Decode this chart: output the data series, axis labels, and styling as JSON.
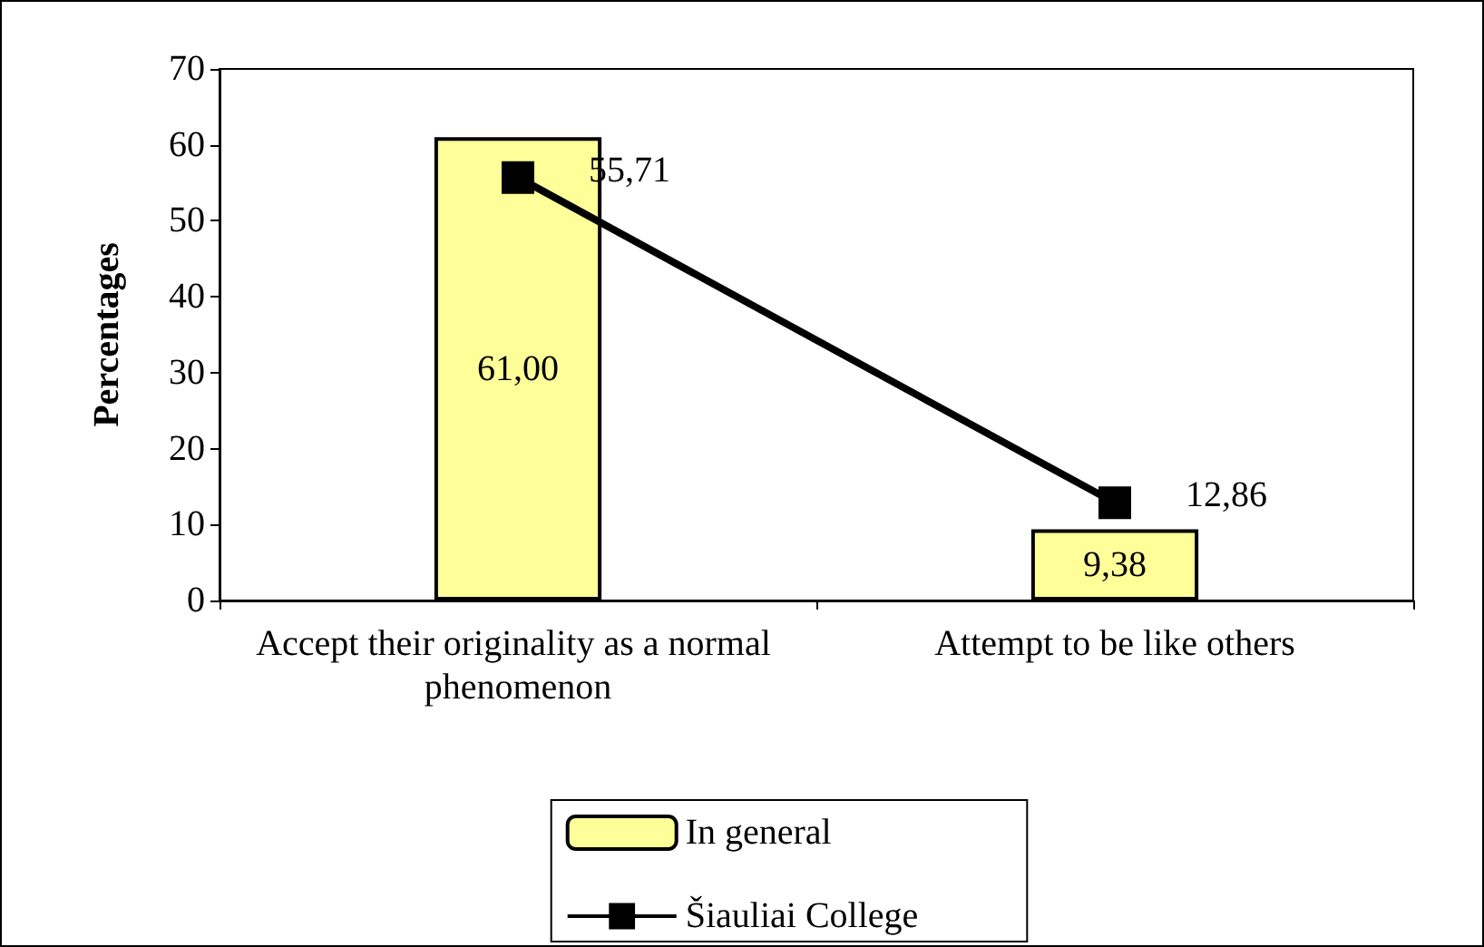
{
  "chart_data": {
    "type": "bar",
    "ylabel": "Percentages",
    "categories": [
      "Accept their originality as a normal phenomenon",
      "Attempt to be like others"
    ],
    "series": [
      {
        "name": "In general",
        "color": "#ffff99",
        "values": [
          61.0,
          9.38
        ],
        "value_labels": [
          "61,00",
          "9,38"
        ]
      },
      {
        "name": "Šiauliai College",
        "type": "line",
        "color": "#000000",
        "values": [
          55.71,
          12.86
        ],
        "value_labels": [
          "55,71",
          "12,86"
        ],
        "marker": "square"
      }
    ],
    "ylim": [
      0,
      70
    ],
    "yticks": [
      0,
      10,
      20,
      30,
      40,
      50,
      60,
      70
    ],
    "grid": false,
    "legend": "bottom"
  }
}
